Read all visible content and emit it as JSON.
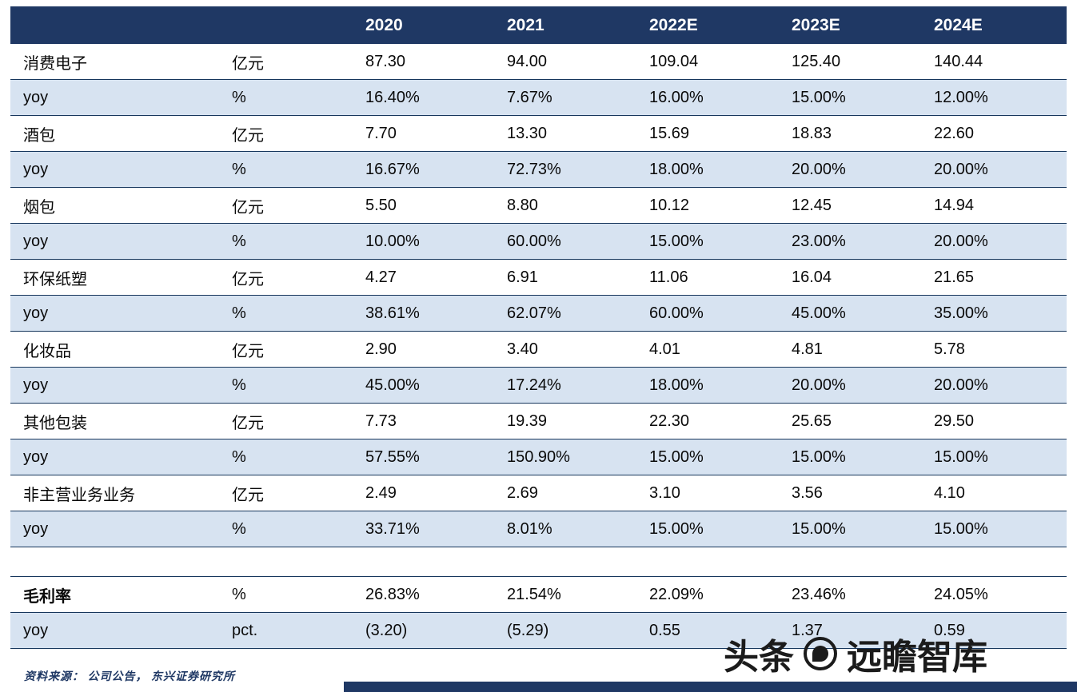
{
  "colors": {
    "header_bg": "#1F3864",
    "row_shade": "#D7E3F1",
    "row_border": "#16365C",
    "source_text": "#1F3864",
    "watermark_text": "#1b1b1b"
  },
  "chart_data": {
    "type": "table",
    "columns": [
      "",
      "",
      "2020",
      "2021",
      "2022E",
      "2023E",
      "2024E"
    ],
    "rows": [
      {
        "label": "消费电子",
        "unit": "亿元",
        "values": [
          "87.30",
          "94.00",
          "109.04",
          "125.40",
          "140.44"
        ],
        "shade": false
      },
      {
        "label": "yoy",
        "unit": "%",
        "values": [
          "16.40%",
          "7.67%",
          "16.00%",
          "15.00%",
          "12.00%"
        ],
        "shade": true
      },
      {
        "label": "酒包",
        "unit": "亿元",
        "values": [
          "7.70",
          "13.30",
          "15.69",
          "18.83",
          "22.60"
        ],
        "shade": false
      },
      {
        "label": "yoy",
        "unit": "%",
        "values": [
          "16.67%",
          "72.73%",
          "18.00%",
          "20.00%",
          "20.00%"
        ],
        "shade": true
      },
      {
        "label": "烟包",
        "unit": "亿元",
        "values": [
          "5.50",
          "8.80",
          "10.12",
          "12.45",
          "14.94"
        ],
        "shade": false
      },
      {
        "label": "yoy",
        "unit": "%",
        "values": [
          "10.00%",
          "60.00%",
          "15.00%",
          "23.00%",
          "20.00%"
        ],
        "shade": true
      },
      {
        "label": "环保纸塑",
        "unit": "亿元",
        "values": [
          "4.27",
          "6.91",
          "11.06",
          "16.04",
          "21.65"
        ],
        "shade": false
      },
      {
        "label": "yoy",
        "unit": "%",
        "values": [
          "38.61%",
          "62.07%",
          "60.00%",
          "45.00%",
          "35.00%"
        ],
        "shade": true
      },
      {
        "label": "化妆品",
        "unit": "亿元",
        "values": [
          "2.90",
          "3.40",
          "4.01",
          "4.81",
          "5.78"
        ],
        "shade": false
      },
      {
        "label": "yoy",
        "unit": "%",
        "values": [
          "45.00%",
          "17.24%",
          "18.00%",
          "20.00%",
          "20.00%"
        ],
        "shade": true
      },
      {
        "label": "其他包装",
        "unit": "亿元",
        "values": [
          "7.73",
          "19.39",
          "22.30",
          "25.65",
          "29.50"
        ],
        "shade": false
      },
      {
        "label": "yoy",
        "unit": "%",
        "values": [
          "57.55%",
          "150.90%",
          "15.00%",
          "15.00%",
          "15.00%"
        ],
        "shade": true
      },
      {
        "label": "非主营业务业务",
        "unit": "亿元",
        "values": [
          "2.49",
          "2.69",
          "3.10",
          "3.56",
          "4.10"
        ],
        "shade": false
      },
      {
        "label": "yoy",
        "unit": "%",
        "values": [
          "33.71%",
          "8.01%",
          "15.00%",
          "15.00%",
          "15.00%"
        ],
        "shade": true
      },
      {
        "type": "spacer"
      },
      {
        "label": "毛利率",
        "unit": "%",
        "values": [
          "26.83%",
          "21.54%",
          "22.09%",
          "23.46%",
          "24.05%"
        ],
        "shade": false,
        "bold_label": true
      },
      {
        "label": "yoy",
        "unit": "pct.",
        "values": [
          "(3.20)",
          "(5.29)",
          "0.55",
          "1.37",
          "0.59"
        ],
        "shade": true
      }
    ]
  },
  "footer": {
    "source": "资料来源： 公司公告， 东兴证券研究所"
  },
  "watermark": {
    "prefix": "头条",
    "name": "远瞻智库"
  }
}
